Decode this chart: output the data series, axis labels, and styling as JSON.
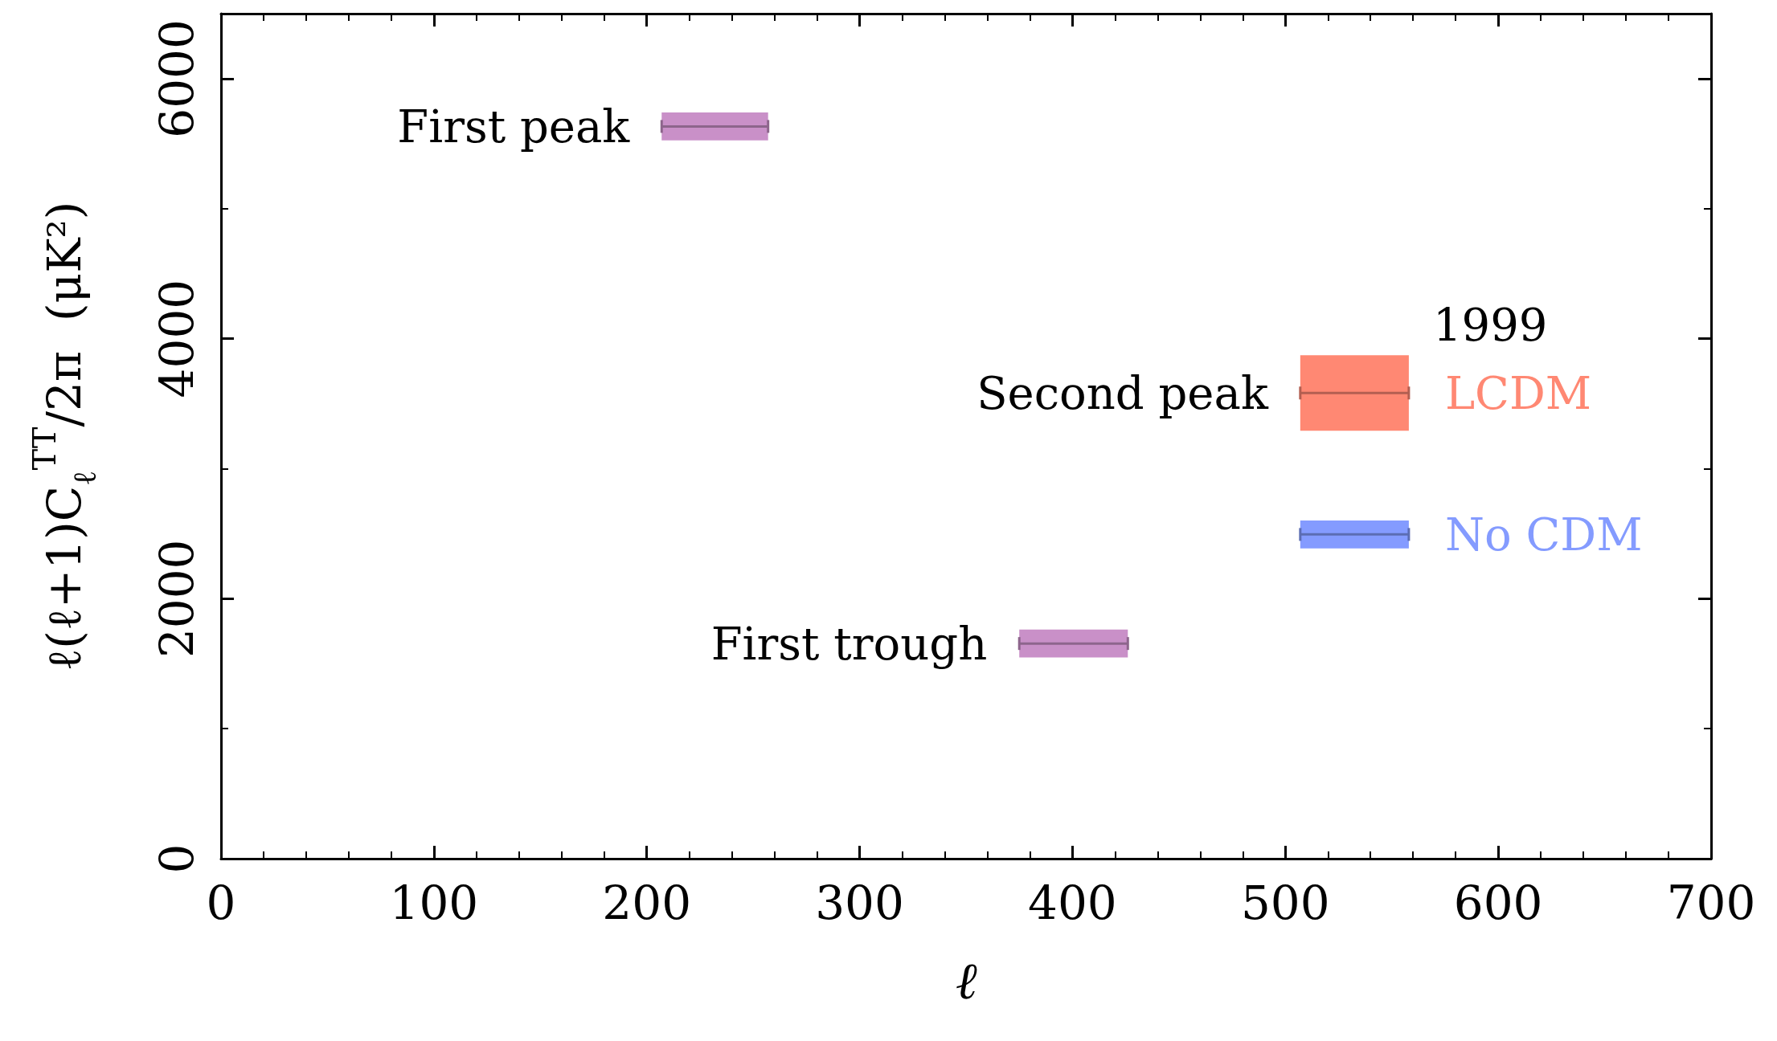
{
  "chart_data": {
    "type": "bar",
    "xlabel": "ℓ",
    "ylabel": "ℓ(ℓ+1)C$_{ℓ}$$^{TT}$/2π  (μK²)",
    "legend_title": "1999",
    "xlim": [
      0,
      700
    ],
    "xticks": [
      0,
      100,
      200,
      300,
      400,
      500,
      600,
      700
    ],
    "ylim": [
      0,
      6500
    ],
    "yticks": [
      0,
      2000,
      4000,
      6000
    ],
    "grid": false,
    "legend": "right",
    "series": [
      {
        "color": "#c990c8",
        "x": [
          232,
          400.5
        ],
        "xerrors": [
          25,
          25.5
        ],
        "base": [
          5525,
          1547
        ],
        "values": [
          215,
          216
        ]
      },
      {
        "name": "LCDM",
        "color": "#ff8873",
        "x": [
          532.5
        ],
        "xerrors": [
          25.5
        ],
        "base": [
          3292
        ],
        "values": [
          580
        ]
      },
      {
        "name": "No CDM",
        "color": "#849bff",
        "x": [
          532.5
        ],
        "xerrors": [
          25.5
        ],
        "base": [
          2386
        ],
        "values": [
          216
        ]
      }
    ],
    "annotations": [
      {
        "text": "First peak",
        "x": 207,
        "y": 5632
      },
      {
        "text": "First trough",
        "x": 375,
        "y": 1655
      },
      {
        "text": "Second peak",
        "x": 507,
        "y": 3582
      }
    ]
  }
}
